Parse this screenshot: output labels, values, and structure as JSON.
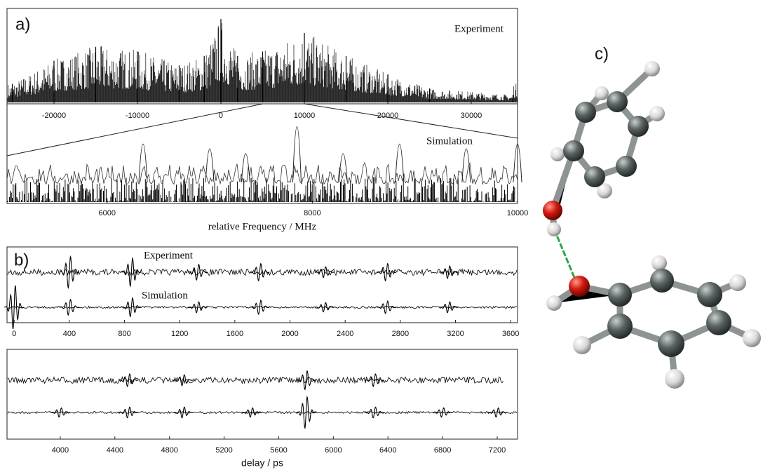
{
  "chart_data": [
    {
      "type": "spectrum",
      "panel_label": "a)",
      "annotation": "Experiment",
      "xlim": [
        -25630,
        35546
      ],
      "xticks": [
        -20000,
        -10000,
        0,
        10000,
        20000,
        30000
      ],
      "ylim": [
        0,
        1
      ],
      "envelope": {
        "x": [
          -25000,
          -20000,
          -15000,
          -10000,
          -5000,
          -2000,
          0,
          2000,
          5000,
          10000,
          15000,
          20000,
          25000,
          35000
        ],
        "values": [
          0.2,
          0.45,
          0.6,
          0.55,
          0.4,
          0.5,
          0.9,
          0.5,
          0.55,
          0.75,
          0.5,
          0.3,
          0.15,
          0.08
        ]
      }
    },
    {
      "type": "spectrum-zoom",
      "annotation": "Simulation",
      "xlabel": "relative Frequency / MHz",
      "xlim": [
        5024,
        10000
      ],
      "xticks": [
        6000,
        8000,
        10000
      ],
      "ylim": [
        0,
        1
      ],
      "peaks": {
        "x": [
          6350,
          7000,
          7350,
          7850,
          8300,
          8850,
          9500,
          10000
        ],
        "values": [
          0.6,
          0.55,
          0.5,
          0.78,
          0.5,
          0.6,
          0.55,
          0.6
        ]
      }
    },
    {
      "type": "transient",
      "panel_label": "b)",
      "xlim": [
        -52,
        3650
      ],
      "xticks": [
        0,
        400,
        800,
        1200,
        1600,
        2000,
        2400,
        2800,
        3200,
        3600
      ],
      "series": [
        {
          "name": "Experiment",
          "x": [
            400,
            850,
            1330,
            1780,
            2250,
            2700,
            3150
          ],
          "values": [
            1.0,
            0.9,
            0.5,
            0.55,
            0.35,
            0.55,
            0.4
          ]
        },
        {
          "name": "Simulation",
          "x": [
            0,
            400,
            850,
            1330,
            1780,
            2250,
            2700,
            3150
          ],
          "values": [
            1.4,
            0.5,
            0.6,
            0.35,
            0.45,
            0.3,
            0.4,
            0.35
          ]
        }
      ]
    },
    {
      "type": "transient",
      "xlabel": "delay / ps",
      "xlim": [
        3610,
        7349
      ],
      "xticks": [
        4000,
        4400,
        4800,
        5200,
        5600,
        6000,
        6400,
        6800,
        7200
      ],
      "series": [
        {
          "x": [
            4500,
            4900,
            5800,
            6300
          ],
          "values": [
            0.4,
            0.35,
            0.6,
            0.4
          ],
          "x_end": 7250
        },
        {
          "x": [
            4000,
            4500,
            4900,
            5400,
            5800,
            6300,
            6800,
            7200
          ],
          "values": [
            0.3,
            0.35,
            0.35,
            0.3,
            1.0,
            0.35,
            0.3,
            0.3
          ]
        }
      ]
    }
  ],
  "panel_c": {
    "label": "c)"
  }
}
